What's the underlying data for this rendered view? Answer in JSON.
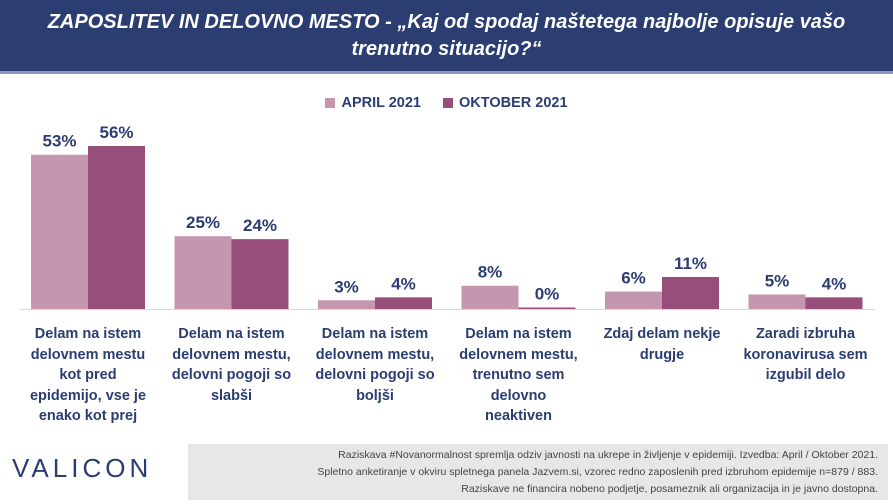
{
  "title": "ZAPOSLITEV IN DELOVNO MESTO - „Kaj od spodaj naštetega najbolje opisuje vašo trenutno situacijo?“",
  "colors": {
    "title_bg": "#2b3d71",
    "april": "#c497af",
    "oktober": "#974e7a",
    "label_text": "#2b3d71"
  },
  "chart_data": {
    "type": "bar",
    "categories": [
      "Delam na istem delovnem mestu kot pred epidemijo, vse je enako kot prej",
      "Delam na istem delovnem mestu, delovni pogoji so slabši",
      "Delam na istem delovnem mestu, delovni pogoji so boljši",
      "Delam na istem delovnem mestu, trenutno sem delovno neaktiven",
      "Zdaj delam nekje drugje",
      "Zaradi izbruha koronavirusa sem izgubil delo"
    ],
    "category_lines": [
      "Delam na istem\ndelovnem mestu\nkot pred\nepidemijo, vse je\nenako kot prej",
      "Delam na istem\ndelovnem mestu,\ndelovni pogoji so\nslabši",
      "Delam na istem\ndelovnem mestu,\ndelovni pogoji so\nboljši",
      "Delam na istem\ndelovnem mestu,\ntrenutno sem\ndelovno\nneaktiven",
      "Zdaj delam nekje\ndrugje",
      "Zaradi izbruha\nkoronavirusa sem\nizgubil delo"
    ],
    "series": [
      {
        "name": "APRIL 2021",
        "values": [
          53,
          25,
          3,
          8,
          6,
          5
        ]
      },
      {
        "name": "OKTOBER 2021",
        "values": [
          56,
          24,
          4,
          0,
          11,
          4
        ]
      }
    ],
    "value_suffix": "%",
    "ylim": [
      0,
      56
    ],
    "legend": "top-center",
    "grid": false
  },
  "logo_text": "VALICON",
  "footnote": {
    "line1": "Raziskava #Novanormalnost spremlja odziv javnosti na ukrepe in življenje v epidemiji. Izvedba: April / Oktober 2021.",
    "line2": "Spletno anketiranje v okviru spletnega panela Jazvem.si, vzorec redno zaposlenih pred izbruhom epidemije n=879 / 883.",
    "line3": "Raziskave ne financira nobeno podjetje, posameznik ali organizacija in je javno dostopna."
  }
}
